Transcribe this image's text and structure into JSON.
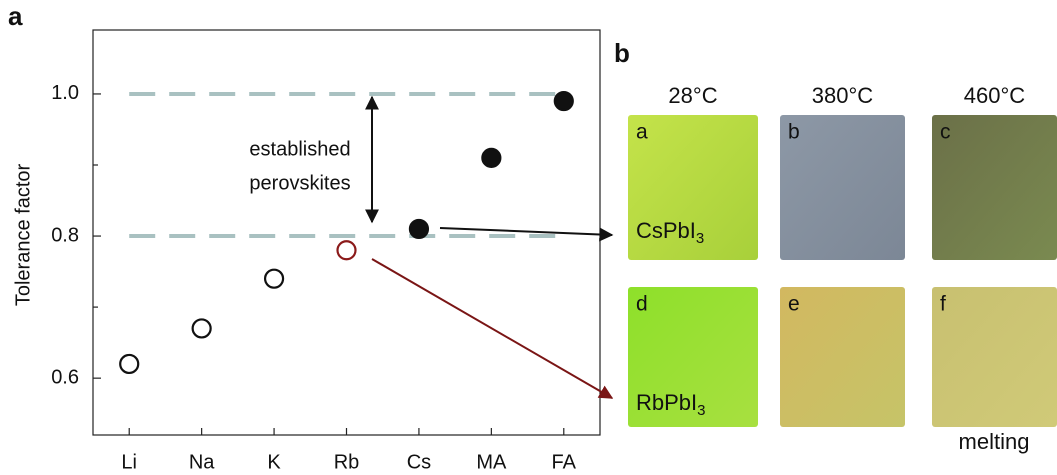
{
  "chart_data": {
    "type": "scatter",
    "panel_label": "a",
    "ylabel": "Tolerance factor",
    "categories": [
      "Li",
      "Na",
      "K",
      "Rb",
      "Cs",
      "MA",
      "FA"
    ],
    "values": [
      0.62,
      0.67,
      0.74,
      0.78,
      0.81,
      0.91,
      0.99
    ],
    "filled": [
      false,
      false,
      false,
      false,
      true,
      true,
      true
    ],
    "colors": [
      "#111111",
      "#111111",
      "#111111",
      "#8b1a1a",
      "#111111",
      "#111111",
      "#111111"
    ],
    "ylim": [
      0.52,
      1.09
    ],
    "yticks": [
      0.6,
      0.8,
      {
        "value": 1,
        "label": "1.0"
      }
    ],
    "yminorticks": [
      0.7,
      0.9
    ],
    "reference_lines": [
      1,
      0.8
    ],
    "reference_color": "#a9c1c1",
    "annotation": [
      "established",
      "perovskites"
    ]
  },
  "panel_b": {
    "panel_label": "b",
    "temperatures": [
      "28°C",
      "380°C",
      "460°C"
    ],
    "rows": [
      {
        "compound": {
          "text": "CsPbI",
          "subscript": "3"
        },
        "photos": [
          "a",
          "b",
          "c"
        ]
      },
      {
        "compound": {
          "text": "RbPbI",
          "subscript": "3"
        },
        "photos": [
          "d",
          "e",
          "f"
        ]
      }
    ],
    "note": "melting"
  }
}
